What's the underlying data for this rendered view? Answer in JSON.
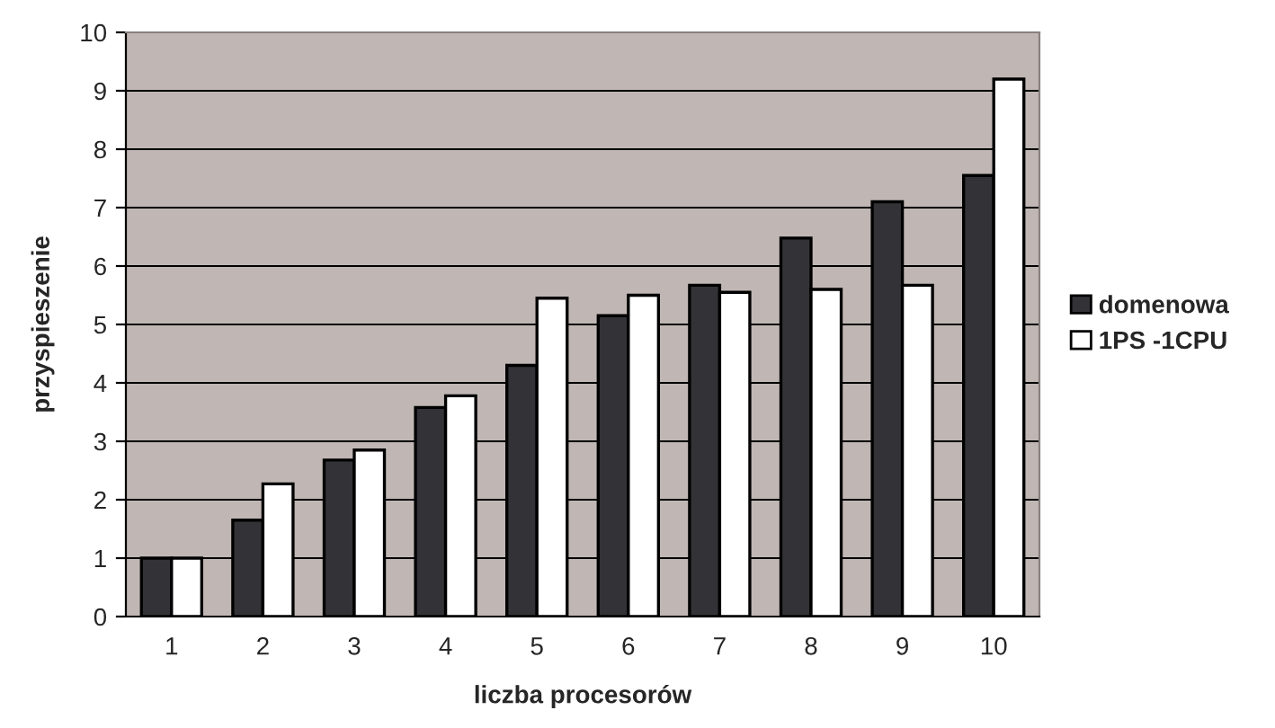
{
  "chart_data": {
    "type": "bar",
    "xlabel": "liczba procesorów",
    "ylabel": "przyspieszenie",
    "categories": [
      "1",
      "2",
      "3",
      "4",
      "5",
      "6",
      "7",
      "8",
      "9",
      "10"
    ],
    "series": [
      {
        "name": "domenowa",
        "color": "#333236",
        "values": [
          1.0,
          1.65,
          2.68,
          3.58,
          4.3,
          5.15,
          5.67,
          6.48,
          7.1,
          7.55
        ]
      },
      {
        "name": "1PS -1CPU",
        "color": "#ffffff",
        "values": [
          1.0,
          2.27,
          2.85,
          3.78,
          5.45,
          5.5,
          5.55,
          5.6,
          5.67,
          9.2
        ]
      }
    ],
    "ylim": [
      0,
      10
    ],
    "yticks": [
      0,
      1,
      2,
      3,
      4,
      5,
      6,
      7,
      8,
      9,
      10
    ],
    "grid": "y",
    "legend": "right"
  }
}
